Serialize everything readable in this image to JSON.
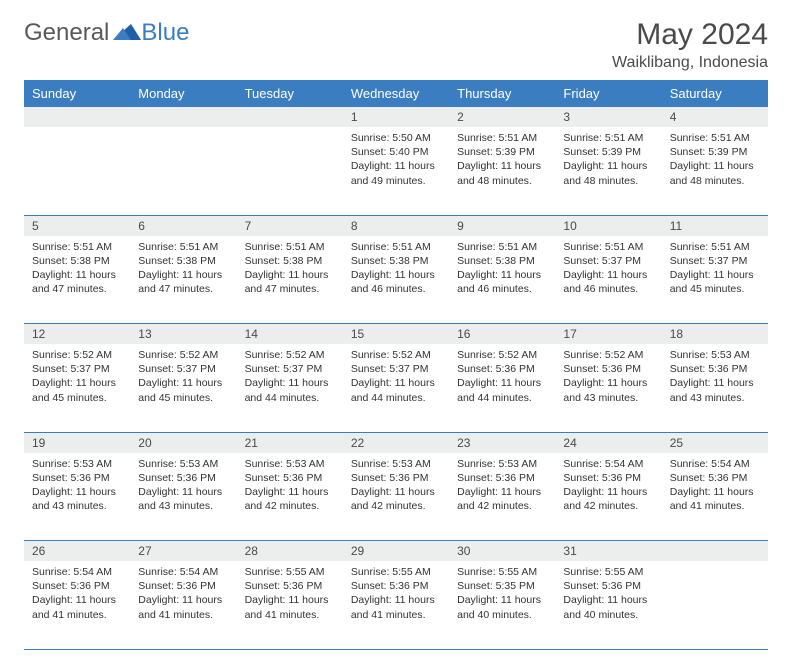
{
  "brand": {
    "word1": "General",
    "word2": "Blue"
  },
  "title": "May 2024",
  "location": "Waiklibang, Indonesia",
  "colors": {
    "header_bg": "#3b7dc1",
    "header_text": "#ffffff",
    "daynum_bg": "#eceded",
    "text": "#333333",
    "border": "#3b7dc1"
  },
  "weekdays": [
    "Sunday",
    "Monday",
    "Tuesday",
    "Wednesday",
    "Thursday",
    "Friday",
    "Saturday"
  ],
  "weeks": [
    {
      "nums": [
        "",
        "",
        "",
        "1",
        "2",
        "3",
        "4"
      ],
      "cells": [
        null,
        null,
        null,
        {
          "sunrise": "Sunrise: 5:50 AM",
          "sunset": "Sunset: 5:40 PM",
          "day1": "Daylight: 11 hours",
          "day2": "and 49 minutes."
        },
        {
          "sunrise": "Sunrise: 5:51 AM",
          "sunset": "Sunset: 5:39 PM",
          "day1": "Daylight: 11 hours",
          "day2": "and 48 minutes."
        },
        {
          "sunrise": "Sunrise: 5:51 AM",
          "sunset": "Sunset: 5:39 PM",
          "day1": "Daylight: 11 hours",
          "day2": "and 48 minutes."
        },
        {
          "sunrise": "Sunrise: 5:51 AM",
          "sunset": "Sunset: 5:39 PM",
          "day1": "Daylight: 11 hours",
          "day2": "and 48 minutes."
        }
      ]
    },
    {
      "nums": [
        "5",
        "6",
        "7",
        "8",
        "9",
        "10",
        "11"
      ],
      "cells": [
        {
          "sunrise": "Sunrise: 5:51 AM",
          "sunset": "Sunset: 5:38 PM",
          "day1": "Daylight: 11 hours",
          "day2": "and 47 minutes."
        },
        {
          "sunrise": "Sunrise: 5:51 AM",
          "sunset": "Sunset: 5:38 PM",
          "day1": "Daylight: 11 hours",
          "day2": "and 47 minutes."
        },
        {
          "sunrise": "Sunrise: 5:51 AM",
          "sunset": "Sunset: 5:38 PM",
          "day1": "Daylight: 11 hours",
          "day2": "and 47 minutes."
        },
        {
          "sunrise": "Sunrise: 5:51 AM",
          "sunset": "Sunset: 5:38 PM",
          "day1": "Daylight: 11 hours",
          "day2": "and 46 minutes."
        },
        {
          "sunrise": "Sunrise: 5:51 AM",
          "sunset": "Sunset: 5:38 PM",
          "day1": "Daylight: 11 hours",
          "day2": "and 46 minutes."
        },
        {
          "sunrise": "Sunrise: 5:51 AM",
          "sunset": "Sunset: 5:37 PM",
          "day1": "Daylight: 11 hours",
          "day2": "and 46 minutes."
        },
        {
          "sunrise": "Sunrise: 5:51 AM",
          "sunset": "Sunset: 5:37 PM",
          "day1": "Daylight: 11 hours",
          "day2": "and 45 minutes."
        }
      ]
    },
    {
      "nums": [
        "12",
        "13",
        "14",
        "15",
        "16",
        "17",
        "18"
      ],
      "cells": [
        {
          "sunrise": "Sunrise: 5:52 AM",
          "sunset": "Sunset: 5:37 PM",
          "day1": "Daylight: 11 hours",
          "day2": "and 45 minutes."
        },
        {
          "sunrise": "Sunrise: 5:52 AM",
          "sunset": "Sunset: 5:37 PM",
          "day1": "Daylight: 11 hours",
          "day2": "and 45 minutes."
        },
        {
          "sunrise": "Sunrise: 5:52 AM",
          "sunset": "Sunset: 5:37 PM",
          "day1": "Daylight: 11 hours",
          "day2": "and 44 minutes."
        },
        {
          "sunrise": "Sunrise: 5:52 AM",
          "sunset": "Sunset: 5:37 PM",
          "day1": "Daylight: 11 hours",
          "day2": "and 44 minutes."
        },
        {
          "sunrise": "Sunrise: 5:52 AM",
          "sunset": "Sunset: 5:36 PM",
          "day1": "Daylight: 11 hours",
          "day2": "and 44 minutes."
        },
        {
          "sunrise": "Sunrise: 5:52 AM",
          "sunset": "Sunset: 5:36 PM",
          "day1": "Daylight: 11 hours",
          "day2": "and 43 minutes."
        },
        {
          "sunrise": "Sunrise: 5:53 AM",
          "sunset": "Sunset: 5:36 PM",
          "day1": "Daylight: 11 hours",
          "day2": "and 43 minutes."
        }
      ]
    },
    {
      "nums": [
        "19",
        "20",
        "21",
        "22",
        "23",
        "24",
        "25"
      ],
      "cells": [
        {
          "sunrise": "Sunrise: 5:53 AM",
          "sunset": "Sunset: 5:36 PM",
          "day1": "Daylight: 11 hours",
          "day2": "and 43 minutes."
        },
        {
          "sunrise": "Sunrise: 5:53 AM",
          "sunset": "Sunset: 5:36 PM",
          "day1": "Daylight: 11 hours",
          "day2": "and 43 minutes."
        },
        {
          "sunrise": "Sunrise: 5:53 AM",
          "sunset": "Sunset: 5:36 PM",
          "day1": "Daylight: 11 hours",
          "day2": "and 42 minutes."
        },
        {
          "sunrise": "Sunrise: 5:53 AM",
          "sunset": "Sunset: 5:36 PM",
          "day1": "Daylight: 11 hours",
          "day2": "and 42 minutes."
        },
        {
          "sunrise": "Sunrise: 5:53 AM",
          "sunset": "Sunset: 5:36 PM",
          "day1": "Daylight: 11 hours",
          "day2": "and 42 minutes."
        },
        {
          "sunrise": "Sunrise: 5:54 AM",
          "sunset": "Sunset: 5:36 PM",
          "day1": "Daylight: 11 hours",
          "day2": "and 42 minutes."
        },
        {
          "sunrise": "Sunrise: 5:54 AM",
          "sunset": "Sunset: 5:36 PM",
          "day1": "Daylight: 11 hours",
          "day2": "and 41 minutes."
        }
      ]
    },
    {
      "nums": [
        "26",
        "27",
        "28",
        "29",
        "30",
        "31",
        ""
      ],
      "cells": [
        {
          "sunrise": "Sunrise: 5:54 AM",
          "sunset": "Sunset: 5:36 PM",
          "day1": "Daylight: 11 hours",
          "day2": "and 41 minutes."
        },
        {
          "sunrise": "Sunrise: 5:54 AM",
          "sunset": "Sunset: 5:36 PM",
          "day1": "Daylight: 11 hours",
          "day2": "and 41 minutes."
        },
        {
          "sunrise": "Sunrise: 5:55 AM",
          "sunset": "Sunset: 5:36 PM",
          "day1": "Daylight: 11 hours",
          "day2": "and 41 minutes."
        },
        {
          "sunrise": "Sunrise: 5:55 AM",
          "sunset": "Sunset: 5:36 PM",
          "day1": "Daylight: 11 hours",
          "day2": "and 41 minutes."
        },
        {
          "sunrise": "Sunrise: 5:55 AM",
          "sunset": "Sunset: 5:35 PM",
          "day1": "Daylight: 11 hours",
          "day2": "and 40 minutes."
        },
        {
          "sunrise": "Sunrise: 5:55 AM",
          "sunset": "Sunset: 5:36 PM",
          "day1": "Daylight: 11 hours",
          "day2": "and 40 minutes."
        },
        null
      ]
    }
  ]
}
